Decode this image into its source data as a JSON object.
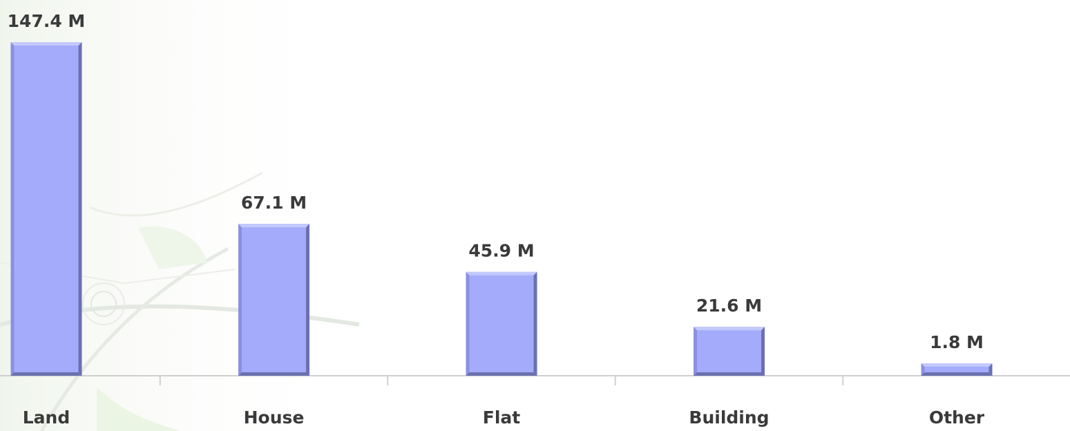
{
  "chart_data": {
    "type": "bar",
    "categories": [
      "Land",
      "House",
      "Flat",
      "Building",
      "Other"
    ],
    "values": [
      147.4,
      67.1,
      45.9,
      21.6,
      1.8
    ],
    "value_labels": [
      "147.4 M",
      "67.1 M",
      "45.9 M",
      "21.6 M",
      "1.8 M"
    ],
    "title": "",
    "xlabel": "",
    "ylabel": "",
    "grid": false,
    "legend": "none",
    "colors": {
      "bar_face": "#a3abfa",
      "bar_top": "#c3c8fc",
      "bar_side": "#6b70b0",
      "bar_edge": "#8a90e0",
      "axis": "#cfcfcf",
      "text": "#3a3a3a"
    }
  }
}
